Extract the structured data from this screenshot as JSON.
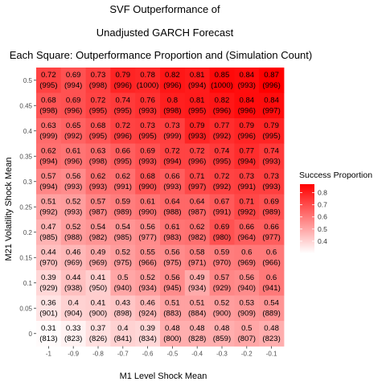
{
  "chart_data": {
    "type": "heatmap",
    "title_lines": [
      "SVF Outperformance of",
      "Unadjusted GARCH Forecast",
      "Each Square: Outperformance Proportion and (Simulation Count)"
    ],
    "xlabel": "M1 Level Shock Mean",
    "ylabel": "M21 Volatility Shock Mean",
    "x_tick_labels": [
      "-1",
      "-0.9",
      "-0.8",
      "-0.7",
      "-0.6",
      "-0.5",
      "-0.4",
      "-0.3",
      "-0.2",
      "-0.1"
    ],
    "y_tick_labels": [
      "0.5",
      "0.45",
      "0.4",
      "0.35",
      "0.3",
      "0.25",
      "0.2",
      "0.15",
      "0.1",
      "0.05",
      "0"
    ],
    "values": [
      [
        "0.72",
        "0.69",
        "0.73",
        "0.79",
        "0.78",
        "0.82",
        "0.81",
        "0.85",
        "0.84",
        "0.87"
      ],
      [
        "0.68",
        "0.69",
        "0.72",
        "0.74",
        "0.76",
        "0.8",
        "0.81",
        "0.82",
        "0.84",
        "0.84"
      ],
      [
        "0.63",
        "0.65",
        "0.68",
        "0.72",
        "0.73",
        "0.73",
        "0.79",
        "0.77",
        "0.79",
        "0.79"
      ],
      [
        "0.62",
        "0.61",
        "0.63",
        "0.66",
        "0.69",
        "0.72",
        "0.72",
        "0.74",
        "0.77",
        "0.74"
      ],
      [
        "0.57",
        "0.56",
        "0.62",
        "0.62",
        "0.68",
        "0.66",
        "0.71",
        "0.72",
        "0.73",
        "0.73"
      ],
      [
        "0.51",
        "0.52",
        "0.57",
        "0.59",
        "0.61",
        "0.64",
        "0.64",
        "0.67",
        "0.71",
        "0.69"
      ],
      [
        "0.47",
        "0.52",
        "0.54",
        "0.54",
        "0.56",
        "0.61",
        "0.62",
        "0.69",
        "0.66",
        "0.66"
      ],
      [
        "0.44",
        "0.46",
        "0.49",
        "0.52",
        "0.55",
        "0.56",
        "0.58",
        "0.59",
        "0.6",
        "0.6"
      ],
      [
        "0.39",
        "0.44",
        "0.41",
        "0.5",
        "0.52",
        "0.56",
        "0.49",
        "0.57",
        "0.56",
        "0.6"
      ],
      [
        "0.36",
        "0.4",
        "0.41",
        "0.43",
        "0.46",
        "0.51",
        "0.51",
        "0.52",
        "0.53",
        "0.54"
      ],
      [
        "0.31",
        "0.33",
        "0.37",
        "0.4",
        "0.39",
        "0.48",
        "0.48",
        "0.48",
        "0.5",
        "0.48"
      ]
    ],
    "counts": [
      [
        "(995)",
        "(994)",
        "(998)",
        "(996)",
        "(1000)",
        "(996)",
        "(994)",
        "(1000)",
        "(993)",
        "(996)"
      ],
      [
        "(998)",
        "(996)",
        "(995)",
        "(995)",
        "(993)",
        "(998)",
        "(995)",
        "(996)",
        "(996)",
        "(997)"
      ],
      [
        "(999)",
        "(992)",
        "(995)",
        "(996)",
        "(995)",
        "(999)",
        "(993)",
        "(992)",
        "(996)",
        "(995)"
      ],
      [
        "(994)",
        "(996)",
        "(998)",
        "(995)",
        "(993)",
        "(994)",
        "(996)",
        "(995)",
        "(994)",
        "(993)"
      ],
      [
        "(994)",
        "(993)",
        "(993)",
        "(991)",
        "(990)",
        "(993)",
        "(997)",
        "(992)",
        "(991)",
        "(993)"
      ],
      [
        "(992)",
        "(993)",
        "(987)",
        "(989)",
        "(990)",
        "(988)",
        "(987)",
        "(991)",
        "(992)",
        "(989)"
      ],
      [
        "(985)",
        "(988)",
        "(982)",
        "(985)",
        "(977)",
        "(983)",
        "(982)",
        "(980)",
        "(964)",
        "(977)"
      ],
      [
        "(970)",
        "(969)",
        "(969)",
        "(975)",
        "(966)",
        "(975)",
        "(971)",
        "(970)",
        "(969)",
        "(966)"
      ],
      [
        "(929)",
        "(938)",
        "(950)",
        "(940)",
        "(934)",
        "(945)",
        "(934)",
        "(929)",
        "(940)",
        "(941)"
      ],
      [
        "(901)",
        "(904)",
        "(900)",
        "(898)",
        "(924)",
        "(883)",
        "(884)",
        "(900)",
        "(909)",
        "(889)"
      ],
      [
        "(813)",
        "(823)",
        "(826)",
        "(841)",
        "(834)",
        "(800)",
        "(828)",
        "(859)",
        "(807)",
        "(823)"
      ]
    ],
    "color_low": "#ffffff",
    "color_high": "#ff0000",
    "value_range": [
      0.3,
      0.87
    ],
    "legend": {
      "title": "Success Proportion",
      "tick_labels": [
        "0.8",
        "0.7",
        "0.6",
        "0.5",
        "0.4"
      ],
      "tick_values": [
        0.8,
        0.7,
        0.6,
        0.5,
        0.4
      ],
      "placement": "right"
    }
  }
}
